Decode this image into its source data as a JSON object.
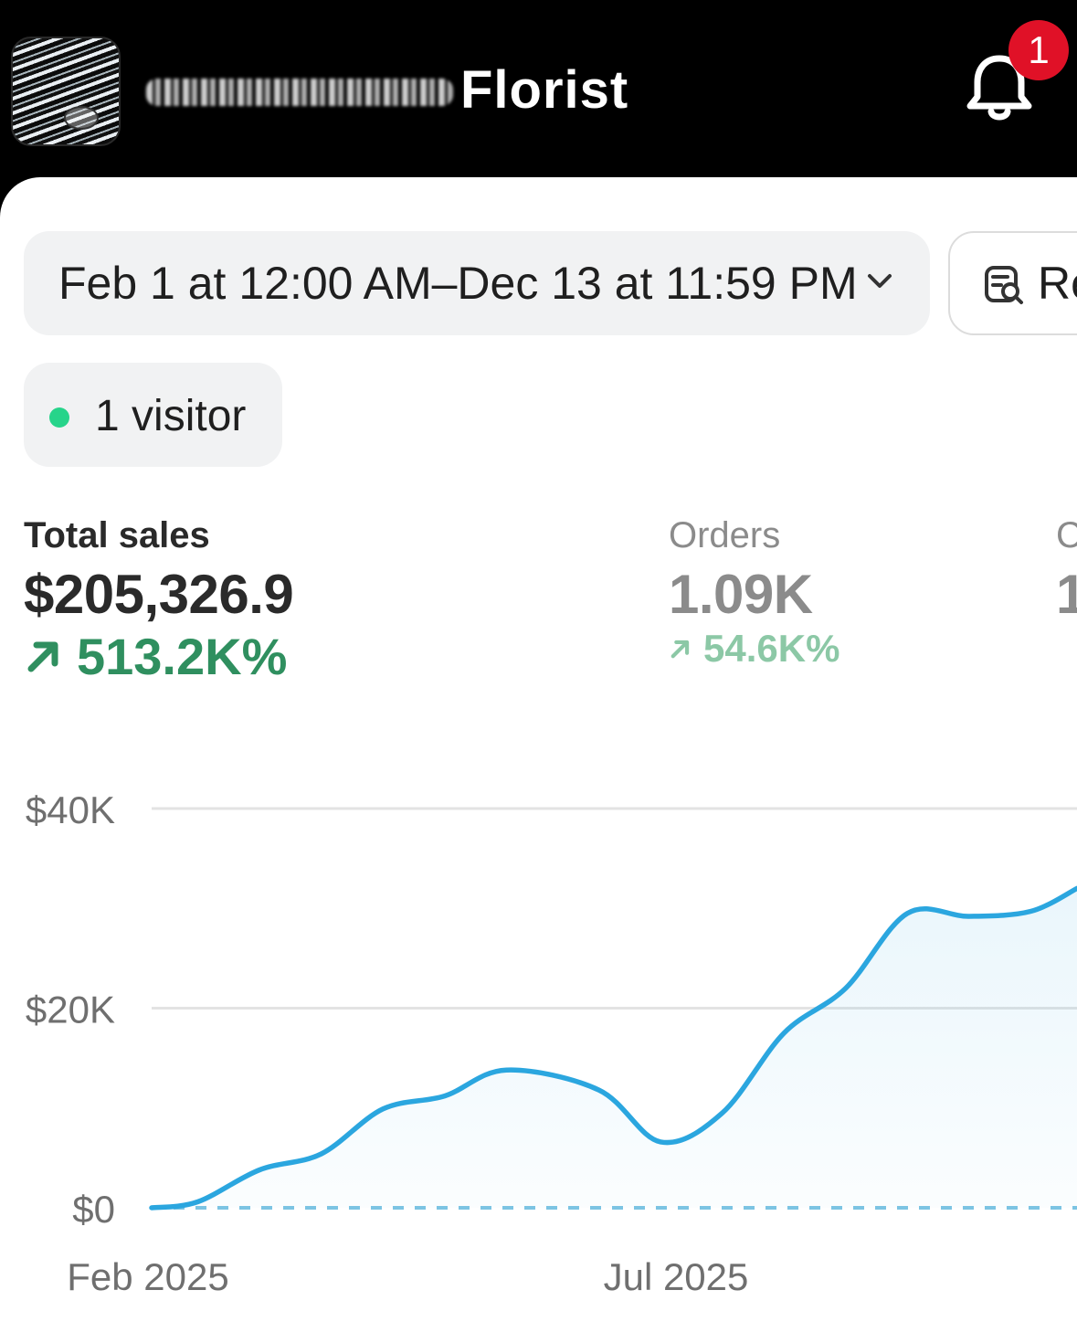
{
  "header": {
    "store_name": "Florist",
    "notification_count": "1"
  },
  "filters": {
    "date_range": "Feb 1 at 12:00 AM–Dec 13 at 11:59 PM",
    "report_label": "Re"
  },
  "live": {
    "visitors": "1 visitor"
  },
  "metrics": [
    {
      "label": "Total sales",
      "value": "$205,326.9",
      "change": "513.2K%",
      "color": "#2f8f5f"
    },
    {
      "label": "Orders",
      "value": "1.09K",
      "change": "54.6K%",
      "color": "#8cc8a6"
    },
    {
      "label": "C",
      "value": "1"
    }
  ],
  "colors": {
    "accent": "#2ba6df",
    "positive": "#2f8f5f",
    "badge": "#e01127",
    "live_dot": "#27d48a"
  },
  "chart_data": {
    "type": "area",
    "x_tick_labels": [
      "Feb 2025",
      "Jul 2025"
    ],
    "y_tick_labels": [
      "$40K",
      "$20K",
      "$0"
    ],
    "ylim": [
      0,
      40000
    ],
    "grid": true,
    "series": [
      {
        "x": [
          0,
          3,
          7,
          11,
          15,
          19,
          23,
          29,
          33,
          37,
          41,
          45,
          49,
          53,
          57,
          60
        ],
        "values": [
          0,
          600,
          3800,
          5400,
          9900,
          11200,
          13800,
          11800,
          6600,
          9500,
          17500,
          22000,
          29500,
          29200,
          29700,
          32000
        ]
      },
      {
        "x": [
          0,
          60
        ],
        "values": [
          0,
          0
        ],
        "dashed": true
      }
    ]
  }
}
